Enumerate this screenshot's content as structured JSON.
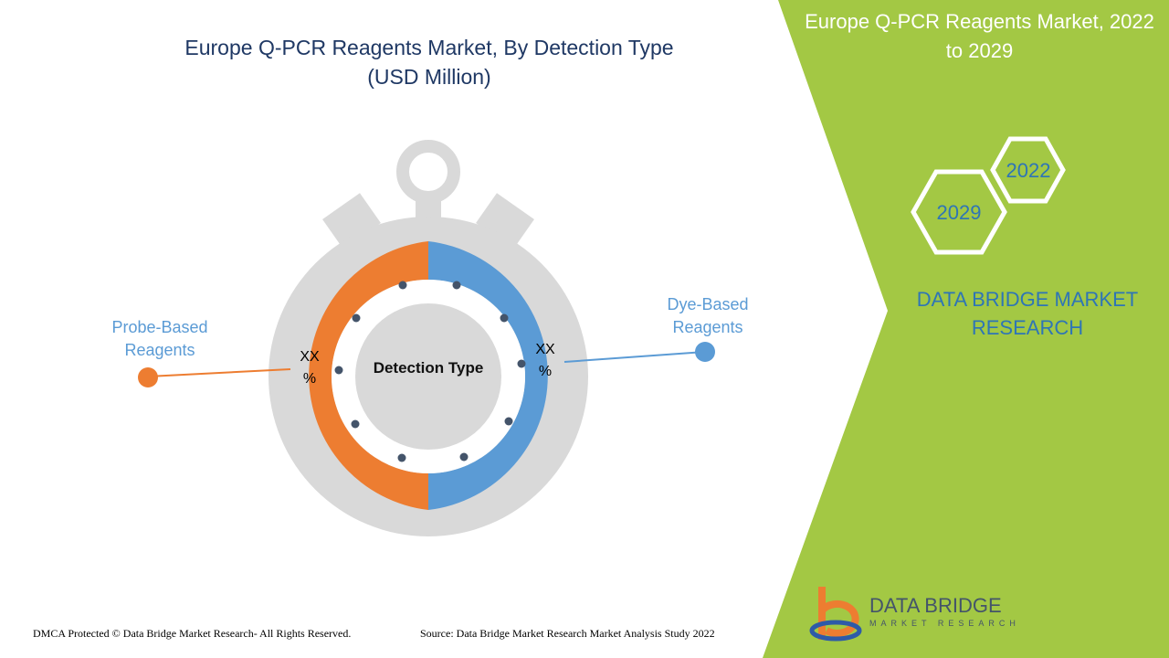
{
  "header": {
    "title": "Europe Q-PCR Reagents Market, By Detection Type",
    "subtitle": "(USD Million)"
  },
  "panel": {
    "title": "Europe Q-PCR Reagents Market, 2022 to 2029",
    "years": [
      "2022",
      "2029"
    ],
    "brand": "DATA BRIDGE MARKET RESEARCH"
  },
  "diagram": {
    "center_label": "Detection Type",
    "segments": [
      {
        "name": "Probe-Based Reagents",
        "color": "#ED7D31",
        "value_label": "XX %"
      },
      {
        "name": "Dye-Based Reagents",
        "color": "#5B9BD5",
        "value_label": "XX %"
      }
    ]
  },
  "footer": {
    "copyright": "DMCA Protected © Data Bridge Market Research- All Rights Reserved.",
    "source": "Source: Data Bridge Market Research Market Analysis Study 2022"
  },
  "logo": {
    "name": "DATA BRIDGE",
    "tagline": "MARKET RESEARCH"
  }
}
